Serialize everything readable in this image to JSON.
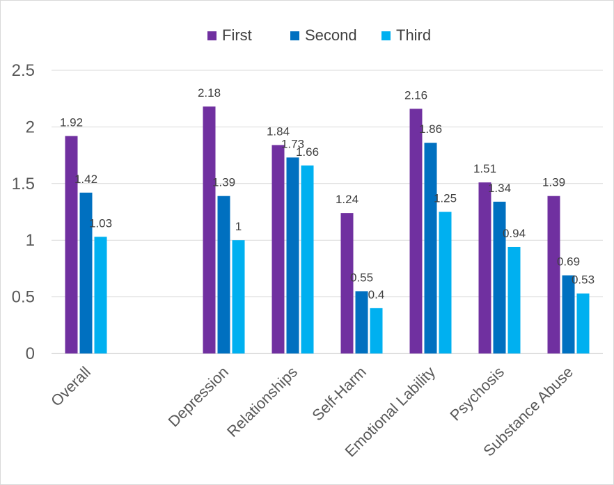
{
  "chart_data": {
    "type": "bar",
    "title": "",
    "xlabel": "",
    "ylabel": "",
    "ylim": [
      0,
      2.5
    ],
    "yticks": [
      "0",
      "0.5",
      "1",
      "1.5",
      "2",
      "2.5"
    ],
    "grid": true,
    "legend_position": "top-center",
    "categories": [
      "Overall",
      "",
      "Depression",
      "Relationships",
      "Self-Harm",
      "Emotional Lability",
      "Psychosis",
      "Substance Abuse"
    ],
    "series": [
      {
        "name": "First",
        "color": "#7030a0",
        "values": [
          1.92,
          null,
          2.18,
          1.84,
          1.24,
          2.16,
          1.51,
          1.39
        ],
        "labels": [
          "1.92",
          "",
          "2.18",
          "1.84",
          "1.24",
          "2.16",
          "1.51",
          "1.39"
        ]
      },
      {
        "name": "Second",
        "color": "#0070c0",
        "values": [
          1.42,
          null,
          1.39,
          1.73,
          0.55,
          1.86,
          1.34,
          0.69
        ],
        "labels": [
          "1.42",
          "",
          "1.39",
          "1.73",
          "0.55",
          "1.86",
          "1.34",
          "0.69"
        ]
      },
      {
        "name": "Third",
        "color": "#00b0f0",
        "values": [
          1.03,
          null,
          1.0,
          1.66,
          0.4,
          1.25,
          0.94,
          0.53
        ],
        "labels": [
          "1.03",
          "",
          "1",
          "1.66",
          "0.4",
          "1.25",
          "0.94",
          "0.53"
        ]
      }
    ]
  }
}
